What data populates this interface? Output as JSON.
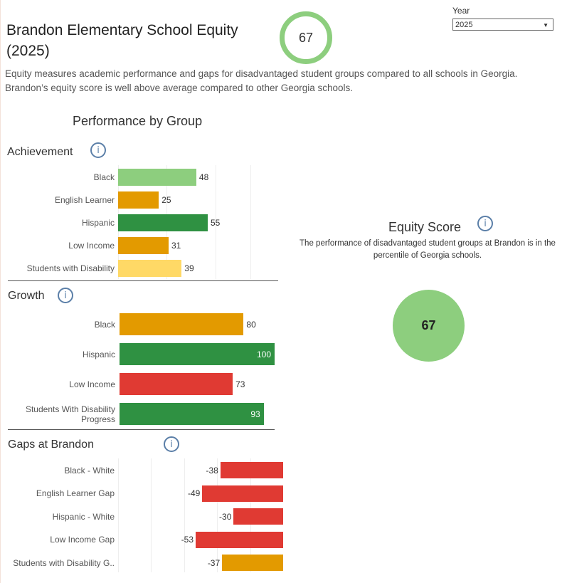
{
  "header": {
    "title_line1": "Brandon Elementary School Equity",
    "title_line2": "(2025)",
    "score": "67",
    "description_line1": "Equity measures academic performance and gaps for disadvantaged student groups compared to all schools in Georgia.",
    "description_line2": "Brandon’s equity score is well above average compared to other Georgia schools."
  },
  "year_filter": {
    "label": "Year",
    "value": "2025"
  },
  "performance": {
    "title": "Performance by Group",
    "achievement": {
      "title": "Achievement",
      "info": "i",
      "rows": [
        {
          "label": "Black",
          "value": 48,
          "color": "#8dce7e"
        },
        {
          "label": "English Learner",
          "value": 25,
          "color": "#e39a00"
        },
        {
          "label": "Hispanic",
          "value": 55,
          "color": "#2f9142"
        },
        {
          "label": "Low Income",
          "value": 31,
          "color": "#e39a00"
        },
        {
          "label": "Students with Disability",
          "value": 39,
          "color": "#ffd966"
        }
      ]
    },
    "growth": {
      "title": "Growth",
      "info": "i",
      "rows": [
        {
          "label": "Black",
          "value": 80,
          "color": "#e39a00"
        },
        {
          "label": "Hispanic",
          "value": 100,
          "color": "#2f9142"
        },
        {
          "label": "Low Income",
          "value": 73,
          "color": "#e03a33"
        },
        {
          "label": "Students With Disability Progress",
          "value": 93,
          "color": "#2f9142"
        }
      ]
    },
    "gaps": {
      "title": "Gaps at Brandon",
      "info": "i",
      "rows": [
        {
          "label": "Black - White",
          "value": -38,
          "color": "#e03a33"
        },
        {
          "label": "English Learner Gap",
          "value": -49,
          "color": "#e03a33"
        },
        {
          "label": "Hispanic - White",
          "value": -30,
          "color": "#e03a33"
        },
        {
          "label": "Low Income Gap",
          "value": -53,
          "color": "#e03a33"
        },
        {
          "label": "Students with Disability G..",
          "value": -37,
          "color": "#e39a00"
        }
      ]
    }
  },
  "equity": {
    "title": "Equity Score",
    "info": "i",
    "text": "The performance of disadvantaged student groups at Brandon is in the  percentile of Georgia schools.",
    "score": "67"
  }
}
